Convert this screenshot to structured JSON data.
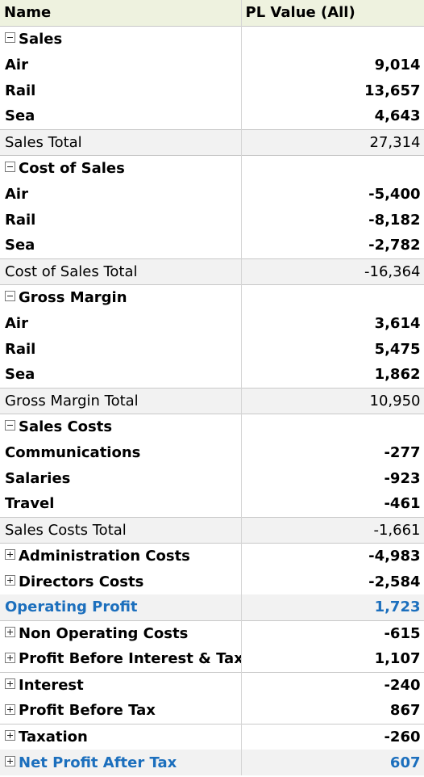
{
  "header": {
    "name": "Name",
    "value": "PL Value (All)"
  },
  "rows": [
    {
      "label": "Sales",
      "value": "",
      "toggle": "minus"
    },
    {
      "label": "Air",
      "value": "9,014"
    },
    {
      "label": "Rail",
      "value": "13,657"
    },
    {
      "label": "Sea",
      "value": "4,643"
    },
    {
      "label": "Sales Total",
      "value": "27,314"
    },
    {
      "label": "Cost of Sales",
      "value": "",
      "toggle": "minus"
    },
    {
      "label": "Air",
      "value": "-5,400"
    },
    {
      "label": "Rail",
      "value": "-8,182"
    },
    {
      "label": "Sea",
      "value": "-2,782"
    },
    {
      "label": "Cost of Sales Total",
      "value": "-16,364"
    },
    {
      "label": "Gross Margin",
      "value": "",
      "toggle": "minus"
    },
    {
      "label": "Air",
      "value": "3,614"
    },
    {
      "label": "Rail",
      "value": "5,475"
    },
    {
      "label": "Sea",
      "value": "1,862"
    },
    {
      "label": "Gross Margin Total",
      "value": "10,950"
    },
    {
      "label": "Sales Costs",
      "value": "",
      "toggle": "minus"
    },
    {
      "label": "Communications",
      "value": "-277"
    },
    {
      "label": "Salaries",
      "value": "-923"
    },
    {
      "label": "Travel",
      "value": "-461"
    },
    {
      "label": "Sales Costs Total",
      "value": "-1,661"
    },
    {
      "label": "Administration Costs",
      "value": "-4,983",
      "toggle": "plus"
    },
    {
      "label": "Directors Costs",
      "value": "-2,584",
      "toggle": "plus"
    },
    {
      "label": "Operating Profit",
      "value": "1,723"
    },
    {
      "label": "Non Operating Costs",
      "value": "-615",
      "toggle": "plus"
    },
    {
      "label": "Profit Before Interest & Tax",
      "value": "1,107",
      "toggle": "plus"
    },
    {
      "label": "Interest",
      "value": "-240",
      "toggle": "plus"
    },
    {
      "label": "Profit Before Tax",
      "value": "867",
      "toggle": "plus"
    },
    {
      "label": "Taxation",
      "value": "-260",
      "toggle": "plus"
    },
    {
      "label": "Net Profit After Tax",
      "value": "607",
      "toggle": "plus"
    }
  ],
  "colors": {
    "highlight_text": "#1c6fbd",
    "header_bg": "#eef2df",
    "total_bg": "#f2f2f2"
  }
}
